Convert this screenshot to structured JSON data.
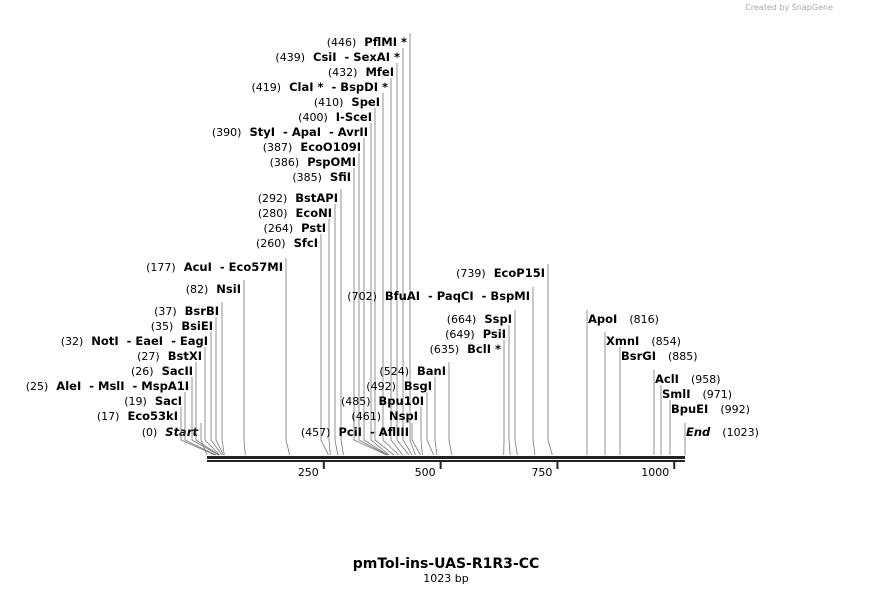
{
  "credit": "Created by SnapGene",
  "title": "pmTol-ins-UAS-R1R3-CC",
  "subtitle": "1023 bp",
  "map_range": [
    0,
    1023
  ],
  "ticks": [
    250,
    500,
    750,
    1000
  ],
  "sites": [
    {
      "pos": {
        "value": 0,
        "label": "(0)"
      },
      "name": "Start"
    },
    {
      "pos": {
        "value": 17,
        "label": "(17)"
      },
      "name": "Eco53kI"
    },
    {
      "pos": {
        "value": 19,
        "label": "(19)"
      },
      "name": "SacI"
    },
    {
      "pos": {
        "value": 25,
        "label": "(25)"
      },
      "name": "AleI  - MslI  - MspA1I"
    },
    {
      "pos": {
        "value": 26,
        "label": "(26)"
      },
      "name": "SacII"
    },
    {
      "pos": {
        "value": 27,
        "label": "(27)"
      },
      "name": "BstXI"
    },
    {
      "pos": {
        "value": 32,
        "label": "(32)"
      },
      "name": "NotI  - EaeI  - EagI"
    },
    {
      "pos": {
        "value": 35,
        "label": "(35)"
      },
      "name": "BsiEI"
    },
    {
      "pos": {
        "value": 37,
        "label": "(37)"
      },
      "name": "BsrBI"
    },
    {
      "pos": {
        "value": 82,
        "label": "(82)"
      },
      "name": "NsiI"
    },
    {
      "pos": {
        "value": 177,
        "label": "(177)"
      },
      "name": "AcuI  - Eco57MI"
    },
    {
      "pos": {
        "value": 260,
        "label": "(260)"
      },
      "name": "SfcI"
    },
    {
      "pos": {
        "value": 264,
        "label": "(264)"
      },
      "name": "PstI"
    },
    {
      "pos": {
        "value": 280,
        "label": "(280)"
      },
      "name": "EcoNI"
    },
    {
      "pos": {
        "value": 292,
        "label": "(292)"
      },
      "name": "BstAPI"
    },
    {
      "pos": {
        "value": 385,
        "label": "(385)"
      },
      "name": "SfiI"
    },
    {
      "pos": {
        "value": 386,
        "label": "(386)"
      },
      "name": "PspOMI"
    },
    {
      "pos": {
        "value": 387,
        "label": "(387)"
      },
      "name": "EcoO109I"
    },
    {
      "pos": {
        "value": 390,
        "label": "(390)"
      },
      "name": "StyI  - ApaI  - AvrII"
    },
    {
      "pos": {
        "value": 400,
        "label": "(400)"
      },
      "name": "I-SceI"
    },
    {
      "pos": {
        "value": 410,
        "label": "(410)"
      },
      "name": "SpeI"
    },
    {
      "pos": {
        "value": 419,
        "label": "(419)"
      },
      "name": "ClaI *  - BspDI *"
    },
    {
      "pos": {
        "value": 432,
        "label": "(432)"
      },
      "name": "MfeI"
    },
    {
      "pos": {
        "value": 439,
        "label": "(439)"
      },
      "name": "CsiI  - SexAI *"
    },
    {
      "pos": {
        "value": 446,
        "label": "(446)"
      },
      "name": "PflMI *"
    },
    {
      "pos": {
        "value": 457,
        "label": "(457)"
      },
      "name": "PciI  - AflIII"
    },
    {
      "pos": {
        "value": 461,
        "label": "(461)"
      },
      "name": "NspI"
    },
    {
      "pos": {
        "value": 485,
        "label": "(485)"
      },
      "name": "Bpu10I"
    },
    {
      "pos": {
        "value": 492,
        "label": "(492)"
      },
      "name": "BsgI"
    },
    {
      "pos": {
        "value": 524,
        "label": "(524)"
      },
      "name": "BanI"
    },
    {
      "pos": {
        "value": 635,
        "label": "(635)"
      },
      "name": "BclI *"
    },
    {
      "pos": {
        "value": 649,
        "label": "(649)"
      },
      "name": "PsiI"
    },
    {
      "pos": {
        "value": 664,
        "label": "(664)"
      },
      "name": "SspI"
    },
    {
      "pos": {
        "value": 702,
        "label": "(702)"
      },
      "name": "BfuAI  - PaqCI  - BspMI"
    },
    {
      "pos": {
        "value": 739,
        "label": "(739)"
      },
      "name": "EcoP15I"
    },
    {
      "pos": {
        "value": 816,
        "label": "(816)"
      },
      "name": "ApoI"
    },
    {
      "pos": {
        "value": 854,
        "label": "(854)"
      },
      "name": "XmnI"
    },
    {
      "pos": {
        "value": 885,
        "label": "(885)"
      },
      "name": "BsrGI"
    },
    {
      "pos": {
        "value": 958,
        "label": "(958)"
      },
      "name": "AclI"
    },
    {
      "pos": {
        "value": 971,
        "label": "(971)"
      },
      "name": "SmlI"
    },
    {
      "pos": {
        "value": 992,
        "label": "(992)"
      },
      "name": "BpuEI"
    },
    {
      "pos": {
        "value": 1023,
        "label": "(1023)"
      },
      "name": "End"
    }
  ]
}
